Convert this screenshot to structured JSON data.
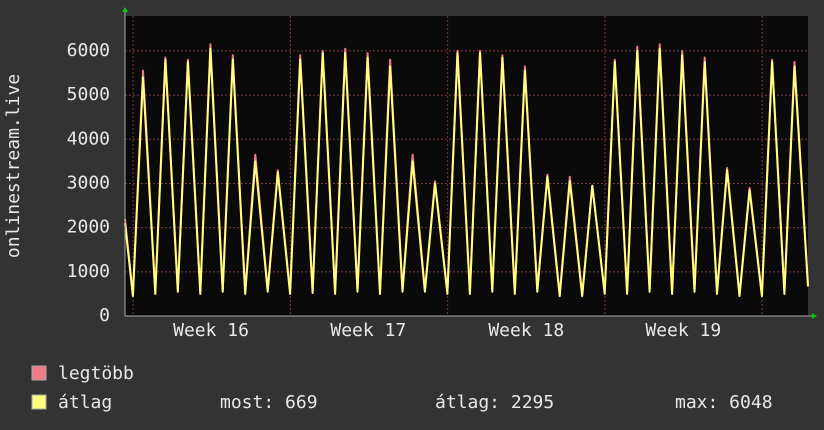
{
  "chart_data": {
    "type": "line",
    "ylabel": "onlinestream.live",
    "x": [
      0,
      0.35,
      0.8,
      1.35,
      1.8,
      2.35,
      2.8,
      3.35,
      3.8,
      4.35,
      4.8,
      5.35,
      5.8,
      6.35,
      6.8,
      7.35,
      7.8,
      8.35,
      8.8,
      9.35,
      9.8,
      10.35,
      10.8,
      11.35,
      11.8,
      12.35,
      12.8,
      13.35,
      13.8,
      14.35,
      14.8,
      15.35,
      15.8,
      16.35,
      16.8,
      17.35,
      17.8,
      18.35,
      18.8,
      19.35,
      19.8,
      20.35,
      20.8,
      21.35,
      21.8,
      22.35,
      22.8,
      23.35,
      23.8,
      24.35,
      24.8,
      25.35,
      25.8,
      26.35,
      26.8,
      27.35,
      27.8,
      28.35,
      28.8,
      29.35,
      29.8,
      30.4
    ],
    "series": [
      {
        "name": "legtöbb",
        "color": "#f07a84",
        "values": [
          2200,
          490,
          5550,
          540,
          5850,
          590,
          5800,
          540,
          6150,
          590,
          5900,
          540,
          3650,
          590,
          3300,
          540,
          5900,
          560,
          6000,
          540,
          6050,
          590,
          5950,
          540,
          5800,
          590,
          3650,
          590,
          3050,
          540,
          6000,
          540,
          6000,
          590,
          5900,
          540,
          5650,
          590,
          3200,
          490,
          3150,
          490,
          2950,
          540,
          5800,
          540,
          6100,
          590,
          6150,
          540,
          6000,
          590,
          5850,
          540,
          3350,
          490,
          2900,
          490,
          5800,
          540,
          5750,
          700
        ]
      },
      {
        "name": "átlag",
        "color": "#ffff80",
        "values": [
          2100,
          450,
          5400,
          500,
          5800,
          550,
          5750,
          500,
          6050,
          550,
          5800,
          500,
          3500,
          550,
          3250,
          500,
          5800,
          520,
          5950,
          500,
          5950,
          550,
          5850,
          500,
          5650,
          550,
          3500,
          550,
          3000,
          500,
          5950,
          500,
          5950,
          550,
          5850,
          500,
          5550,
          550,
          3150,
          450,
          3050,
          450,
          2950,
          500,
          5750,
          500,
          6000,
          550,
          6050,
          500,
          5900,
          550,
          5750,
          500,
          3300,
          450,
          2850,
          450,
          5750,
          500,
          5650,
          669
        ]
      }
    ],
    "xlim": [
      0,
      30.4
    ],
    "xticks": [
      {
        "value": 3.83,
        "label": "Week 16"
      },
      {
        "value": 10.83,
        "label": "Week 17"
      },
      {
        "value": 17.86,
        "label": "Week 18"
      },
      {
        "value": 24.85,
        "label": "Week 19"
      }
    ],
    "xgrid": [
      0.36,
      7.36,
      14.36,
      21.36,
      28.36
    ],
    "ylim": [
      0,
      6790
    ],
    "yticks": [
      0,
      1000,
      2000,
      3000,
      4000,
      5000,
      6000
    ],
    "grid": true,
    "stats": [
      "most: 669",
      "átlag: 2295",
      "max: 6048"
    ]
  }
}
